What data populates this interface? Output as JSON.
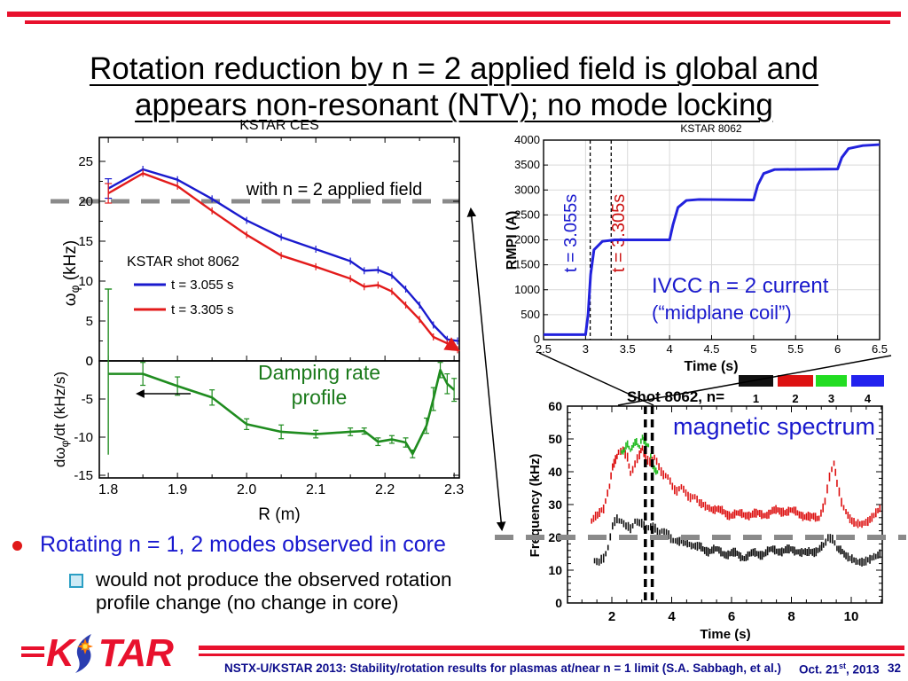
{
  "title": {
    "line1": "Rotation reduction by n = 2 applied field is global and",
    "line2": "appears non-resonant (NTV); no mode locking"
  },
  "bullets": {
    "main": "Rotating n = 1, 2 modes observed in core",
    "sub1": "would not produce the observed rotation",
    "sub2": "profile change (no change in core)"
  },
  "logo": {
    "k": "K",
    "tar": "TAR"
  },
  "footer": {
    "conference": "NSTX-U/KSTAR 2013: Stability/rotation results for plasmas at/near  n = 1 limit (S.A. Sabbagh, et al.)",
    "date_prefix": "Oct. 21",
    "date_sup": "st",
    "date_rest": ", 2013",
    "page": "32"
  },
  "colors": {
    "slide_rule_red": "#e8112d",
    "annotation_blue": "#1a1acd",
    "gray_dashed": "#8a8a8a",
    "footer_navy": "#0d0d8c"
  },
  "chart_data": [
    {
      "id": "rotation_profiles",
      "type": "line",
      "title": "KSTAR CES",
      "ylabel_parts": [
        {
          "t": "ω"
        },
        {
          "t": "φ",
          "sub": true
        },
        {
          "t": " (kHz)"
        }
      ],
      "yticks": [
        0,
        5,
        10,
        15,
        20,
        25
      ],
      "xlim": [
        1.787,
        2.308
      ],
      "ylim": [
        0,
        28
      ],
      "hline": {
        "y": 20,
        "label": "with n = 2 applied field",
        "color": "#8a8a8a"
      },
      "legend_title": "KSTAR shot 8062",
      "series": [
        {
          "name": "t = 3.055 s",
          "color": "#1a1ace",
          "x": [
            1.8,
            1.85,
            1.9,
            1.95,
            2.0,
            2.05,
            2.1,
            2.15,
            2.17,
            2.19,
            2.21,
            2.23,
            2.25,
            2.27,
            2.29,
            2.305
          ],
          "y": [
            21.6,
            24.0,
            22.7,
            20.3,
            17.6,
            15.5,
            14.0,
            12.5,
            11.3,
            11.4,
            10.7,
            9.0,
            7.0,
            4.5,
            2.7,
            2.5
          ]
        },
        {
          "name": "t = 3.305 s",
          "color": "#e31b1b",
          "end_arrow": true,
          "x": [
            1.8,
            1.85,
            1.9,
            1.95,
            2.0,
            2.05,
            2.1,
            2.15,
            2.17,
            2.19,
            2.21,
            2.23,
            2.25,
            2.27,
            2.29,
            2.305
          ],
          "y": [
            21.0,
            23.5,
            21.9,
            18.8,
            15.8,
            13.2,
            11.8,
            10.3,
            9.3,
            9.5,
            8.7,
            7.0,
            5.2,
            3.0,
            2.2,
            1.4
          ]
        }
      ]
    },
    {
      "id": "damping_rate",
      "type": "line",
      "ylabel_parts": [
        {
          "t": "dω"
        },
        {
          "t": "φ",
          "sub": true
        },
        {
          "t": "/dt (kHz/s)"
        }
      ],
      "xlabel": "R (m)",
      "yticks": [
        0,
        -5,
        -10,
        -15
      ],
      "xticks": [
        1.8,
        1.9,
        2.0,
        2.1,
        2.2,
        2.3
      ],
      "ylim": [
        -15.4,
        1.5
      ],
      "annotation_line1": "Damping rate",
      "annotation_line2": "profile",
      "series": [
        {
          "name": "damping rate",
          "color": "#1f8c1f",
          "x": [
            1.8,
            1.85,
            1.9,
            1.95,
            2.0,
            2.05,
            2.1,
            2.15,
            2.17,
            2.19,
            2.21,
            2.23,
            2.24,
            2.26,
            2.27,
            2.28,
            2.29,
            2.3
          ],
          "y": [
            -1.7,
            -1.7,
            -3.3,
            -4.8,
            -8.3,
            -9.3,
            -9.6,
            -9.3,
            -9.2,
            -10.6,
            -10.3,
            -10.7,
            -12.2,
            -8.5,
            -5.0,
            -1.2,
            -3.0,
            -3.8
          ],
          "err": [
            10.6,
            1.5,
            1.2,
            1.0,
            0.7,
            0.9,
            0.5,
            0.5,
            0.4,
            0.5,
            0.5,
            0.6,
            0.5,
            1.0,
            1.5,
            1.0,
            1.3,
            1.5
          ]
        }
      ]
    },
    {
      "id": "ivcc_current",
      "type": "line",
      "title": "KSTAR 8062",
      "ylabel": "RMPI (A)",
      "xlabel": "Time (s)",
      "xticks": [
        2.5,
        3,
        3.5,
        4,
        4.5,
        5,
        5.5,
        6,
        6.5
      ],
      "yticks": [
        0,
        500,
        1000,
        1500,
        2000,
        2500,
        3000,
        3500,
        4000
      ],
      "xlim": [
        2.5,
        6.5
      ],
      "ylim": [
        0,
        4000
      ],
      "grid": true,
      "vlines": [
        {
          "t": 3.055,
          "label": "t = 3.055s",
          "label_color": "#1a1ace"
        },
        {
          "t": 3.305,
          "label": "t = 3.305s",
          "label_color": "#cc1414"
        }
      ],
      "annotation_line1": "IVCC n = 2 current",
      "annotation_line2": "(“midplane coil”)",
      "series": [
        {
          "name": "IVCC n = 2 current",
          "color": "#2222dd",
          "steps": [
            [
              2.5,
              100
            ],
            [
              3.0,
              100
            ],
            [
              3.03,
              500
            ],
            [
              3.06,
              1300
            ],
            [
              3.1,
              1800
            ],
            [
              3.2,
              1970
            ],
            [
              3.35,
              2000
            ],
            [
              4.0,
              2000
            ],
            [
              4.04,
              2300
            ],
            [
              4.1,
              2650
            ],
            [
              4.2,
              2790
            ],
            [
              4.35,
              2810
            ],
            [
              5.0,
              2800
            ],
            [
              5.05,
              3100
            ],
            [
              5.12,
              3330
            ],
            [
              5.25,
              3410
            ],
            [
              6.0,
              3420
            ],
            [
              6.05,
              3650
            ],
            [
              6.13,
              3830
            ],
            [
              6.3,
              3890
            ],
            [
              6.5,
              3910
            ]
          ]
        }
      ]
    },
    {
      "id": "magnetic_spectrum",
      "type": "scatter",
      "suptitle": "Shot 8062, n=",
      "legend": [
        {
          "label": "1",
          "color": "#111111"
        },
        {
          "label": "2",
          "color": "#dd1111"
        },
        {
          "label": "3",
          "color": "#22dd22"
        },
        {
          "label": "4",
          "color": "#2222ee"
        }
      ],
      "ylabel": "Frequency (kHz)",
      "xlabel": "Time (s)",
      "xticks": [
        2,
        4,
        6,
        8,
        10
      ],
      "yticks": [
        0,
        10,
        20,
        30,
        40,
        50,
        60
      ],
      "xlim": [
        0.5,
        11.05
      ],
      "ylim": [
        0,
        60
      ],
      "annotation": "magnetic spectrum",
      "hline": {
        "y": 20,
        "color": "#8a8a8a"
      },
      "vlines": [
        3.12,
        3.35
      ],
      "series": [
        {
          "name": "n=1",
          "color": "#111111",
          "mark": 6,
          "points": [
            [
              1.4,
              13
            ],
            [
              1.55,
              12
            ],
            [
              1.7,
              14
            ],
            [
              1.85,
              17
            ],
            [
              2.0,
              23
            ],
            [
              2.15,
              26
            ],
            [
              2.3,
              25
            ],
            [
              2.45,
              23
            ],
            [
              2.6,
              23
            ],
            [
              2.75,
              25
            ],
            [
              2.9,
              24
            ],
            [
              3.05,
              24
            ],
            [
              3.2,
              23
            ],
            [
              3.35,
              23
            ],
            [
              3.5,
              22
            ],
            [
              3.65,
              22
            ],
            [
              3.8,
              21
            ],
            [
              3.95,
              20
            ],
            [
              4.1,
              19
            ],
            [
              4.3,
              19
            ],
            [
              4.5,
              18
            ],
            [
              4.7,
              17
            ],
            [
              4.9,
              17
            ],
            [
              5.2,
              16
            ],
            [
              5.5,
              16
            ],
            [
              5.8,
              15
            ],
            [
              6.1,
              15
            ],
            [
              6.4,
              14
            ],
            [
              6.7,
              15
            ],
            [
              7.0,
              15
            ],
            [
              7.3,
              16
            ],
            [
              7.6,
              16
            ],
            [
              7.9,
              16
            ],
            [
              8.2,
              16
            ],
            [
              8.5,
              15
            ],
            [
              8.8,
              16
            ],
            [
              9.05,
              18
            ],
            [
              9.2,
              20
            ],
            [
              9.35,
              19
            ],
            [
              9.5,
              17
            ],
            [
              9.8,
              14
            ],
            [
              10.0,
              13
            ],
            [
              10.2,
              12
            ],
            [
              10.4,
              12
            ],
            [
              10.6,
              13
            ],
            [
              10.8,
              14
            ],
            [
              11.0,
              15
            ]
          ]
        },
        {
          "name": "n=2",
          "color": "#dd1111",
          "mark": 6,
          "points": [
            [
              1.3,
              25
            ],
            [
              1.5,
              27
            ],
            [
              1.7,
              29
            ],
            [
              1.9,
              36
            ],
            [
              2.0,
              41
            ],
            [
              2.1,
              44
            ],
            [
              2.2,
              46
            ],
            [
              2.35,
              47
            ],
            [
              2.5,
              44
            ],
            [
              2.6,
              40
            ],
            [
              2.75,
              42
            ],
            [
              2.9,
              45
            ],
            [
              3.0,
              47
            ],
            [
              3.1,
              45
            ],
            [
              3.25,
              43
            ],
            [
              3.4,
              44
            ],
            [
              3.55,
              42
            ],
            [
              3.7,
              39
            ],
            [
              3.85,
              38
            ],
            [
              4.0,
              36
            ],
            [
              4.15,
              34
            ],
            [
              4.3,
              35
            ],
            [
              4.45,
              34
            ],
            [
              4.6,
              32
            ],
            [
              4.75,
              32
            ],
            [
              4.9,
              31
            ],
            [
              5.1,
              30
            ],
            [
              5.3,
              29
            ],
            [
              5.6,
              28
            ],
            [
              5.9,
              27
            ],
            [
              6.2,
              27
            ],
            [
              6.5,
              27
            ],
            [
              6.8,
              27
            ],
            [
              7.1,
              27
            ],
            [
              7.4,
              28
            ],
            [
              7.7,
              28
            ],
            [
              8.0,
              28
            ],
            [
              8.3,
              27
            ],
            [
              8.6,
              26
            ],
            [
              8.9,
              26
            ],
            [
              9.1,
              31
            ],
            [
              9.25,
              38
            ],
            [
              9.4,
              43
            ],
            [
              9.5,
              36
            ],
            [
              9.65,
              31
            ],
            [
              9.8,
              28
            ],
            [
              10.0,
              25
            ],
            [
              10.2,
              24
            ],
            [
              10.4,
              24
            ],
            [
              10.6,
              25
            ],
            [
              10.8,
              27
            ],
            [
              11.0,
              29
            ]
          ]
        },
        {
          "name": "n=3",
          "color": "#22bb22",
          "mark": 4,
          "points": [
            [
              2.3,
              46
            ],
            [
              2.4,
              47
            ],
            [
              2.5,
              48
            ],
            [
              2.6,
              47
            ],
            [
              2.7,
              48
            ],
            [
              2.8,
              49
            ],
            [
              2.9,
              48
            ],
            [
              3.0,
              50
            ],
            [
              3.1,
              49
            ],
            [
              3.2,
              48
            ],
            [
              3.35,
              42
            ],
            [
              3.45,
              40
            ],
            [
              3.55,
              39
            ]
          ]
        }
      ]
    }
  ]
}
